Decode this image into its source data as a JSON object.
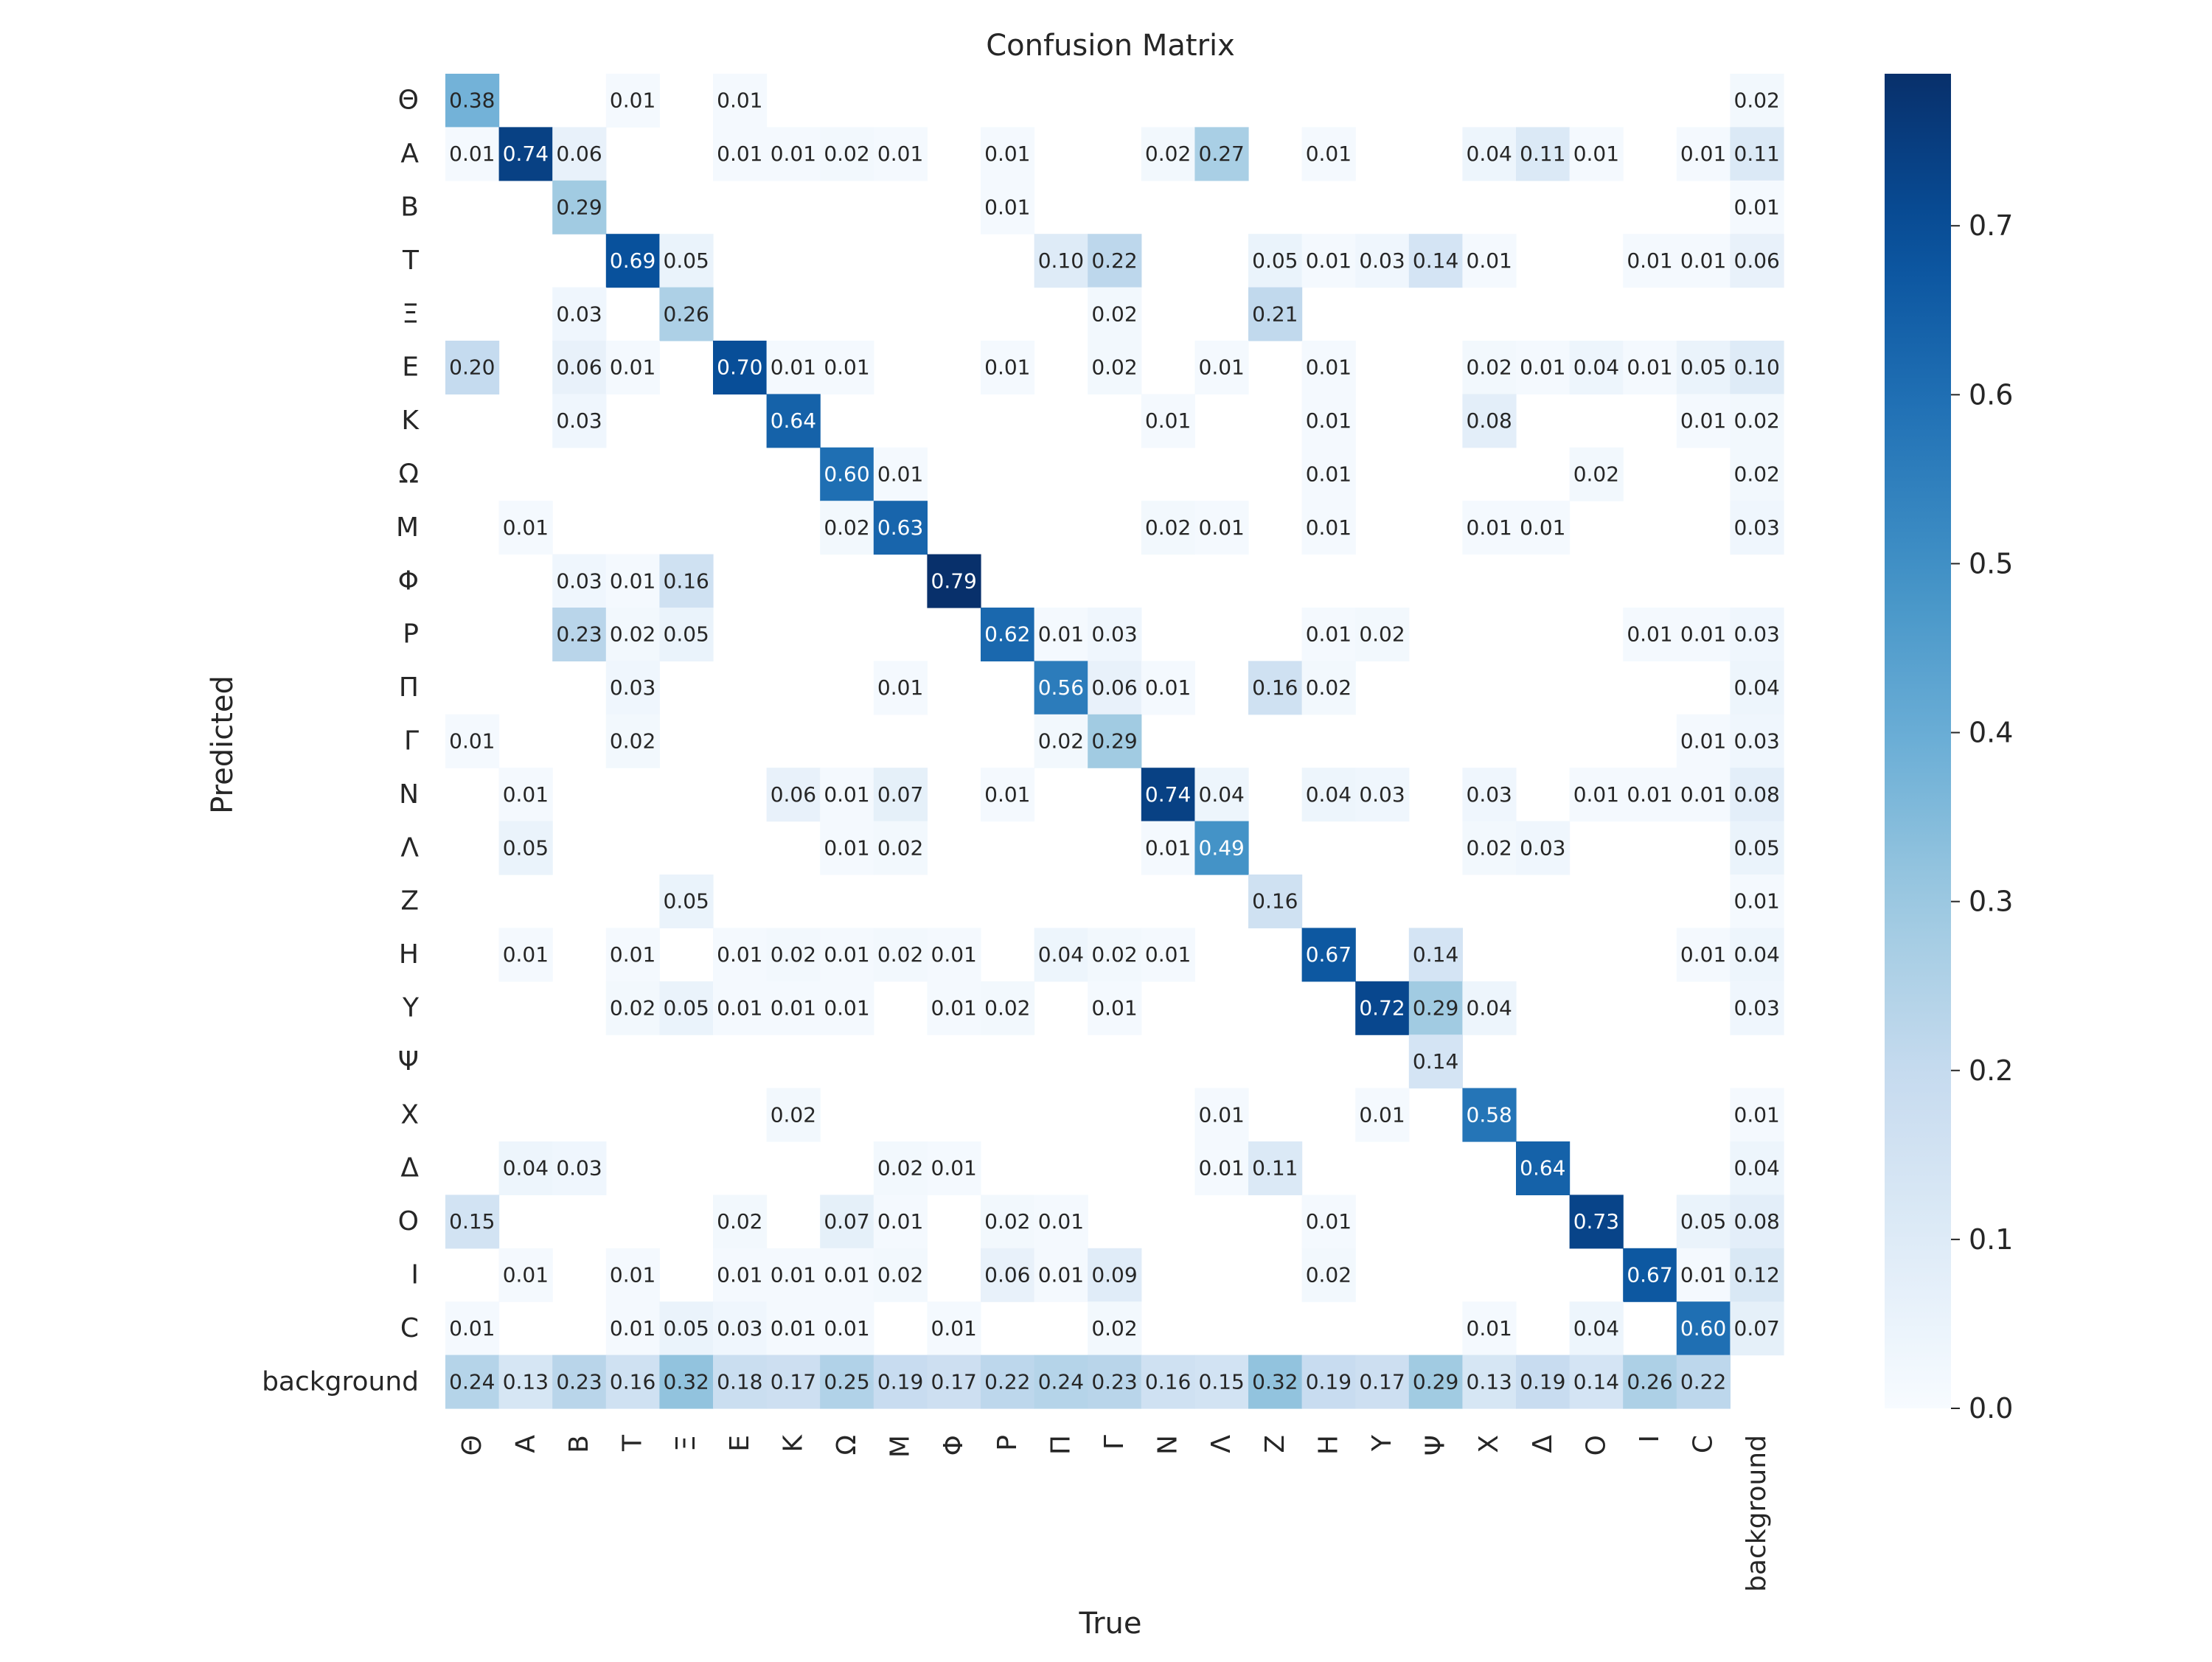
{
  "chart_data": {
    "type": "heatmap",
    "title": "Confusion Matrix",
    "xlabel": "True",
    "ylabel": "Predicted",
    "labels": [
      "Θ",
      "Α",
      "Β",
      "Τ",
      "Ξ",
      "Ε",
      "Κ",
      "Ω",
      "Μ",
      "Φ",
      "Ρ",
      "Π",
      "Γ",
      "Ν",
      "Λ",
      "Ζ",
      "Η",
      "Υ",
      "Ψ",
      "Χ",
      "Δ",
      "Ο",
      "Ι",
      "C",
      "background"
    ],
    "colorbar": {
      "min": 0.0,
      "max": 0.79,
      "ticks": [
        0.0,
        0.1,
        0.2,
        0.3,
        0.4,
        0.5,
        0.6,
        0.7
      ],
      "tick_labels": [
        "0.0",
        "0.1",
        "0.2",
        "0.3",
        "0.4",
        "0.5",
        "0.6",
        "0.7"
      ],
      "colormap": "Blues"
    },
    "cells_note": "rows = predicted (by labels index), cols = true; value null means empty (< 0.005)",
    "matrix": [
      [
        0.38,
        null,
        null,
        0.01,
        null,
        0.01,
        null,
        null,
        null,
        null,
        null,
        null,
        null,
        null,
        null,
        null,
        null,
        null,
        null,
        null,
        null,
        null,
        null,
        null,
        0.02
      ],
      [
        0.01,
        0.74,
        0.06,
        null,
        null,
        0.01,
        0.01,
        0.02,
        0.01,
        null,
        0.01,
        null,
        null,
        0.02,
        0.27,
        null,
        0.01,
        null,
        null,
        0.04,
        0.11,
        0.01,
        null,
        0.01,
        0.11
      ],
      [
        null,
        null,
        0.29,
        null,
        null,
        null,
        null,
        null,
        null,
        null,
        0.01,
        null,
        null,
        null,
        null,
        null,
        null,
        null,
        null,
        null,
        null,
        null,
        null,
        null,
        0.01
      ],
      [
        null,
        null,
        null,
        0.69,
        0.05,
        null,
        null,
        null,
        null,
        null,
        null,
        0.1,
        0.22,
        null,
        null,
        0.05,
        0.01,
        0.03,
        0.14,
        0.01,
        null,
        null,
        0.01,
        0.01,
        0.06
      ],
      [
        null,
        null,
        0.03,
        null,
        0.26,
        null,
        null,
        null,
        null,
        null,
        null,
        null,
        0.02,
        null,
        null,
        0.21,
        null,
        null,
        null,
        null,
        null,
        null,
        null,
        null,
        null
      ],
      [
        0.2,
        null,
        0.06,
        0.01,
        null,
        0.7,
        0.01,
        0.01,
        null,
        null,
        0.01,
        null,
        0.02,
        null,
        0.01,
        null,
        0.01,
        null,
        null,
        0.02,
        0.01,
        0.04,
        0.01,
        0.05,
        0.1
      ],
      [
        null,
        null,
        0.03,
        null,
        null,
        null,
        0.64,
        null,
        null,
        null,
        null,
        null,
        null,
        0.01,
        null,
        null,
        0.01,
        null,
        null,
        0.08,
        null,
        null,
        null,
        0.01,
        0.02
      ],
      [
        null,
        null,
        null,
        null,
        null,
        null,
        null,
        0.6,
        0.01,
        null,
        null,
        null,
        null,
        null,
        null,
        null,
        0.01,
        null,
        null,
        null,
        null,
        0.02,
        null,
        null,
        0.02
      ],
      [
        null,
        0.01,
        null,
        null,
        null,
        null,
        null,
        0.02,
        0.63,
        null,
        null,
        null,
        null,
        0.02,
        0.01,
        null,
        0.01,
        null,
        null,
        0.01,
        0.01,
        null,
        null,
        null,
        0.03
      ],
      [
        null,
        null,
        0.03,
        0.01,
        0.16,
        null,
        null,
        null,
        null,
        0.79,
        null,
        null,
        null,
        null,
        null,
        null,
        null,
        null,
        null,
        null,
        null,
        null,
        null,
        null,
        null
      ],
      [
        null,
        null,
        0.23,
        0.02,
        0.05,
        null,
        null,
        null,
        null,
        null,
        0.62,
        0.01,
        0.03,
        null,
        null,
        null,
        0.01,
        0.02,
        null,
        null,
        null,
        null,
        0.01,
        0.01,
        0.03
      ],
      [
        null,
        null,
        null,
        0.03,
        null,
        null,
        null,
        null,
        0.01,
        null,
        null,
        0.56,
        0.06,
        0.01,
        null,
        0.16,
        0.02,
        null,
        null,
        null,
        null,
        null,
        null,
        null,
        0.04
      ],
      [
        0.01,
        null,
        null,
        0.02,
        null,
        null,
        null,
        null,
        null,
        null,
        null,
        0.02,
        0.29,
        null,
        null,
        null,
        null,
        null,
        null,
        null,
        null,
        null,
        null,
        0.01,
        0.03
      ],
      [
        null,
        0.01,
        null,
        null,
        null,
        null,
        0.06,
        0.01,
        0.07,
        null,
        0.01,
        null,
        null,
        0.74,
        0.04,
        null,
        0.04,
        0.03,
        null,
        0.03,
        null,
        0.01,
        0.01,
        0.01,
        0.08
      ],
      [
        null,
        0.05,
        null,
        null,
        null,
        null,
        null,
        0.01,
        0.02,
        null,
        null,
        null,
        null,
        0.01,
        0.49,
        null,
        null,
        null,
        null,
        0.02,
        0.03,
        null,
        null,
        null,
        0.05
      ],
      [
        null,
        null,
        null,
        null,
        0.05,
        null,
        null,
        null,
        null,
        null,
        null,
        null,
        null,
        null,
        null,
        0.16,
        null,
        null,
        null,
        null,
        null,
        null,
        null,
        null,
        0.01
      ],
      [
        null,
        0.01,
        null,
        0.01,
        null,
        0.01,
        0.02,
        0.01,
        0.02,
        0.01,
        null,
        0.04,
        0.02,
        0.01,
        null,
        null,
        0.67,
        null,
        0.14,
        null,
        null,
        null,
        null,
        0.01,
        0.04
      ],
      [
        null,
        null,
        null,
        0.02,
        0.05,
        0.01,
        0.01,
        0.01,
        null,
        0.01,
        0.02,
        null,
        0.01,
        null,
        null,
        null,
        null,
        0.72,
        0.29,
        0.04,
        null,
        null,
        null,
        null,
        0.03
      ],
      [
        null,
        null,
        null,
        null,
        null,
        null,
        null,
        null,
        null,
        null,
        null,
        null,
        null,
        null,
        null,
        null,
        null,
        null,
        0.14,
        null,
        null,
        null,
        null,
        null,
        null
      ],
      [
        null,
        null,
        null,
        null,
        null,
        null,
        0.02,
        null,
        null,
        null,
        null,
        null,
        null,
        null,
        0.01,
        null,
        null,
        0.01,
        null,
        0.58,
        null,
        null,
        null,
        null,
        0.01
      ],
      [
        null,
        0.04,
        0.03,
        null,
        null,
        null,
        null,
        null,
        0.02,
        0.01,
        null,
        null,
        null,
        null,
        0.01,
        0.11,
        null,
        null,
        null,
        null,
        0.64,
        null,
        null,
        null,
        0.04
      ],
      [
        0.15,
        null,
        null,
        null,
        null,
        0.02,
        null,
        0.07,
        0.01,
        null,
        0.02,
        0.01,
        null,
        null,
        null,
        null,
        0.01,
        null,
        null,
        null,
        null,
        0.73,
        null,
        0.05,
        0.08
      ],
      [
        null,
        0.01,
        null,
        0.01,
        null,
        0.01,
        0.01,
        0.01,
        0.02,
        null,
        0.06,
        0.01,
        0.09,
        null,
        null,
        null,
        0.02,
        null,
        null,
        null,
        null,
        null,
        0.67,
        0.01,
        0.12
      ],
      [
        0.01,
        null,
        null,
        0.01,
        0.05,
        0.03,
        0.01,
        0.01,
        null,
        0.01,
        null,
        null,
        0.02,
        null,
        null,
        null,
        null,
        null,
        null,
        0.01,
        null,
        0.04,
        null,
        0.6,
        0.07
      ],
      [
        0.24,
        0.13,
        0.23,
        0.16,
        0.32,
        0.18,
        0.17,
        0.25,
        0.19,
        0.17,
        0.22,
        0.24,
        0.23,
        0.16,
        0.15,
        0.32,
        0.19,
        0.17,
        0.29,
        0.13,
        0.19,
        0.14,
        0.26,
        0.22,
        null
      ]
    ]
  }
}
